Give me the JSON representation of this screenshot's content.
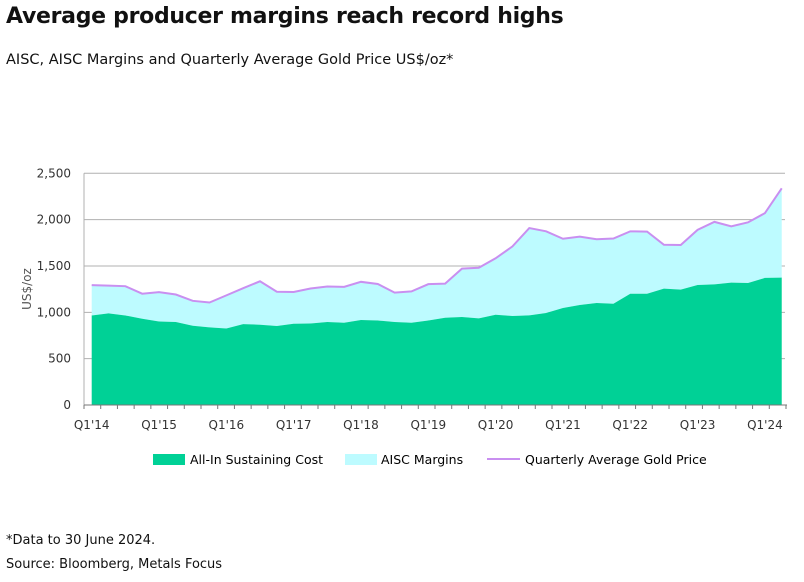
{
  "title": "Average producer margins reach record highs",
  "subtitle": "AISC, AISC Margins and Quarterly Average Gold Price US$/oz*",
  "footnote": "*Data to 30 June 2024.",
  "source": "Source: Bloomberg, Metals Focus",
  "colors": {
    "aisc": "#00d196",
    "margins": "#bdfbff",
    "gold": "#c98ff0",
    "grid": "#b0b0b0"
  },
  "chart_data": {
    "type": "area",
    "ylabel": "US$/oz",
    "ylim": [
      0,
      2500
    ],
    "yticks": [
      "0",
      "500",
      "1,000",
      "1,500",
      "2,000",
      "2,500"
    ],
    "grid": true,
    "legend_position": "bottom",
    "xtick_labels": [
      "Q1'14",
      "Q1'15",
      "Q1'16",
      "Q1'17",
      "Q1'18",
      "Q1'19",
      "Q1'20",
      "Q1'21",
      "Q1'22",
      "Q1'23",
      "Q1'24"
    ],
    "x": [
      "Q1'14",
      "Q2'14",
      "Q3'14",
      "Q4'14",
      "Q1'15",
      "Q2'15",
      "Q3'15",
      "Q4'15",
      "Q1'16",
      "Q2'16",
      "Q3'16",
      "Q4'16",
      "Q1'17",
      "Q2'17",
      "Q3'17",
      "Q4'17",
      "Q1'18",
      "Q2'18",
      "Q3'18",
      "Q4'18",
      "Q1'19",
      "Q2'19",
      "Q3'19",
      "Q4'19",
      "Q1'20",
      "Q2'20",
      "Q3'20",
      "Q4'20",
      "Q1'21",
      "Q2'21",
      "Q3'21",
      "Q4'21",
      "Q1'22",
      "Q2'22",
      "Q3'22",
      "Q4'22",
      "Q1'23",
      "Q2'23",
      "Q3'23",
      "Q4'23",
      "Q1'24",
      "Q2'24"
    ],
    "series": [
      {
        "name": "All-In Sustaining Cost",
        "type": "area",
        "values": [
          966,
          988,
          966,
          931,
          901,
          895,
          855,
          837,
          826,
          873,
          866,
          852,
          877,
          880,
          895,
          887,
          917,
          912,
          895,
          887,
          912,
          941,
          949,
          934,
          974,
          960,
          967,
          992,
          1046,
          1079,
          1100,
          1093,
          1201,
          1201,
          1255,
          1245,
          1295,
          1302,
          1320,
          1316,
          1371,
          1374
        ]
      },
      {
        "name": "AISC Margins",
        "type": "area",
        "note_shown_as": "band between AISC and gold price"
      },
      {
        "name": "Quarterly Average Gold Price",
        "type": "line",
        "values": [
          1293,
          1288,
          1282,
          1201,
          1218,
          1192,
          1124,
          1106,
          1183,
          1260,
          1335,
          1222,
          1219,
          1257,
          1278,
          1275,
          1329,
          1306,
          1213,
          1226,
          1304,
          1310,
          1472,
          1481,
          1583,
          1711,
          1909,
          1874,
          1794,
          1816,
          1789,
          1796,
          1874,
          1871,
          1729,
          1726,
          1890,
          1976,
          1928,
          1971,
          2070,
          2338
        ]
      }
    ]
  }
}
